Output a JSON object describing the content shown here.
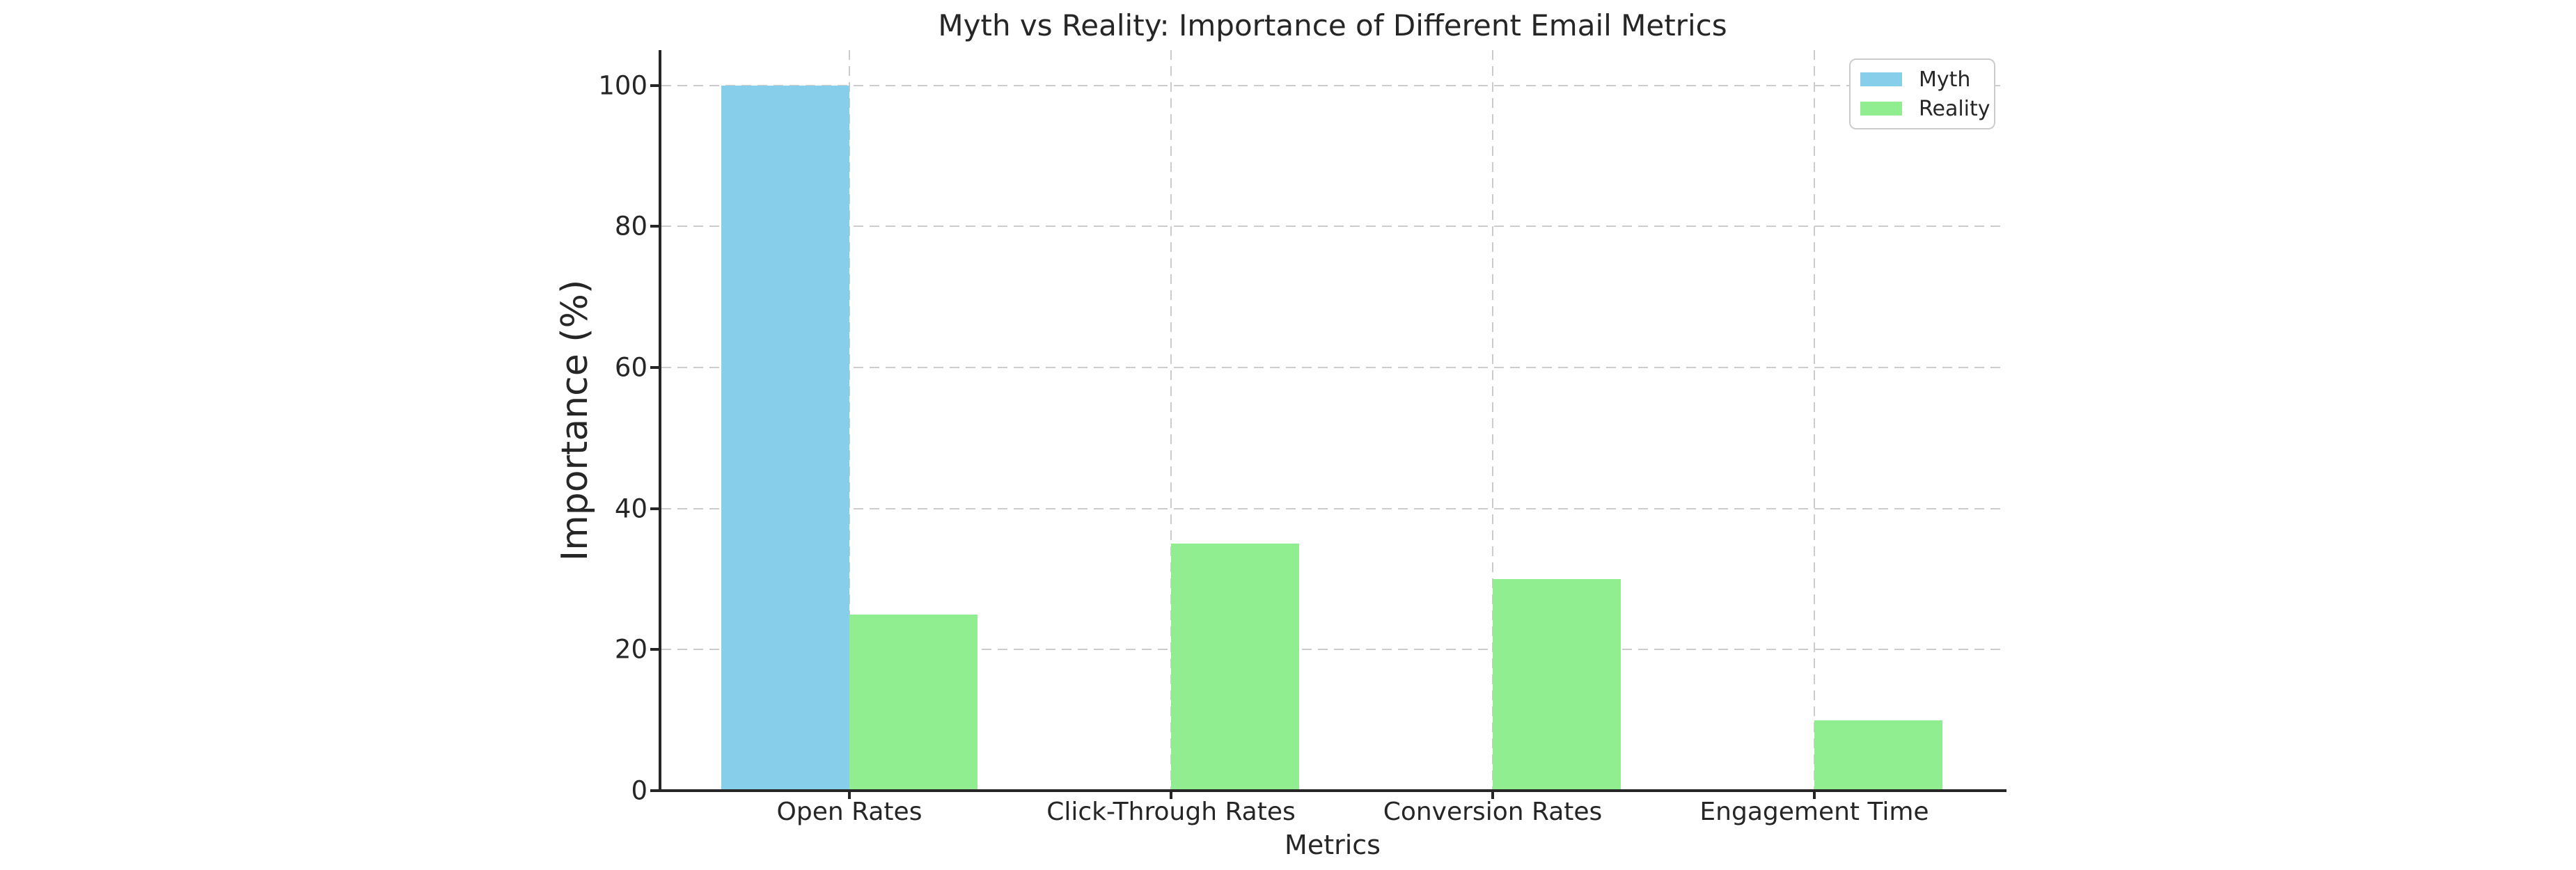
{
  "chart_data": {
    "type": "bar",
    "title": "Myth vs Reality: Importance of Different Email Metrics",
    "xlabel": "Metrics",
    "ylabel": "Importance (%)",
    "categories": [
      "Open Rates",
      "Click-Through Rates",
      "Conversion Rates",
      "Engagement Time"
    ],
    "series": [
      {
        "name": "Myth",
        "color": "#87CEEB",
        "values": [
          100,
          0,
          0,
          0
        ]
      },
      {
        "name": "Reality",
        "color": "#90EE90",
        "values": [
          25,
          35,
          30,
          10
        ]
      }
    ],
    "ylim": [
      0,
      105
    ],
    "yticks": [
      0,
      20,
      40,
      60,
      80,
      100
    ],
    "grid": "dashed-both-axes",
    "legend_position": "upper-right",
    "background_color": "#ffffff",
    "text_color": "#262626",
    "grid_color": "#cccccc"
  }
}
